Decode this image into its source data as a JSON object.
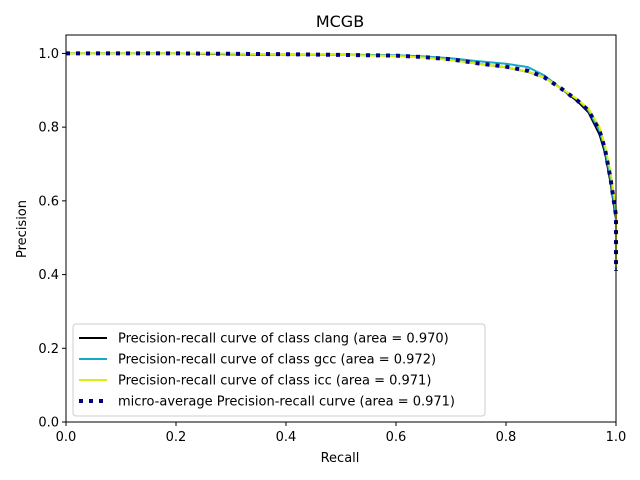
{
  "chart_data": {
    "type": "line",
    "title": "MCGB",
    "xlabel": "Recall",
    "ylabel": "Precision",
    "xlim": [
      0.0,
      1.0
    ],
    "ylim": [
      0.0,
      1.05
    ],
    "x_ticks": [
      "0.0",
      "0.2",
      "0.4",
      "0.6",
      "0.8",
      "1.0"
    ],
    "y_ticks": [
      "0.0",
      "0.2",
      "0.4",
      "0.6",
      "0.8",
      "1.0"
    ],
    "grid": false,
    "legend_position": "lower-left",
    "series": [
      {
        "name": "Precision-recall curve of class clang (area = 0.970)",
        "color": "#000000",
        "style": "solid",
        "x": [
          0.0,
          0.1,
          0.2,
          0.3,
          0.4,
          0.5,
          0.6,
          0.65,
          0.7,
          0.75,
          0.8,
          0.84,
          0.87,
          0.9,
          0.93,
          0.95,
          0.97,
          0.98,
          0.99,
          1.0,
          1.0
        ],
        "y": [
          1.0,
          1.0,
          1.0,
          0.998,
          0.997,
          0.996,
          0.994,
          0.99,
          0.983,
          0.972,
          0.962,
          0.95,
          0.935,
          0.905,
          0.87,
          0.84,
          0.78,
          0.73,
          0.65,
          0.55,
          0.41
        ]
      },
      {
        "name": "Precision-recall curve of class gcc (area = 0.972)",
        "color": "#17a9c9",
        "style": "solid",
        "x": [
          0.0,
          0.1,
          0.2,
          0.3,
          0.4,
          0.5,
          0.6,
          0.65,
          0.7,
          0.75,
          0.8,
          0.84,
          0.87,
          0.9,
          0.93,
          0.95,
          0.97,
          0.98,
          0.99,
          1.0,
          1.0
        ],
        "y": [
          1.0,
          1.0,
          1.0,
          0.999,
          0.998,
          0.997,
          0.995,
          0.992,
          0.987,
          0.979,
          0.972,
          0.963,
          0.94,
          0.905,
          0.875,
          0.845,
          0.79,
          0.74,
          0.66,
          0.56,
          0.41
        ]
      },
      {
        "name": "Precision-recall curve of class icc (area = 0.971)",
        "color": "#d9f00c",
        "style": "solid",
        "x": [
          0.0,
          0.1,
          0.2,
          0.3,
          0.4,
          0.5,
          0.6,
          0.65,
          0.7,
          0.75,
          0.8,
          0.84,
          0.87,
          0.9,
          0.93,
          0.95,
          0.97,
          0.98,
          0.99,
          1.0,
          1.0
        ],
        "y": [
          1.0,
          1.0,
          1.0,
          0.999,
          0.998,
          0.996,
          0.993,
          0.989,
          0.982,
          0.972,
          0.962,
          0.95,
          0.935,
          0.905,
          0.875,
          0.85,
          0.8,
          0.75,
          0.68,
          0.58,
          0.42
        ]
      },
      {
        "name": "micro-average Precision-recall curve (area = 0.971)",
        "color": "#000080",
        "style": "dotted",
        "x": [
          0.0,
          0.1,
          0.2,
          0.3,
          0.4,
          0.5,
          0.6,
          0.65,
          0.7,
          0.75,
          0.8,
          0.84,
          0.87,
          0.9,
          0.93,
          0.95,
          0.97,
          0.98,
          0.99,
          1.0,
          1.0
        ],
        "y": [
          1.0,
          1.0,
          1.0,
          0.999,
          0.998,
          0.996,
          0.994,
          0.99,
          0.984,
          0.973,
          0.964,
          0.953,
          0.935,
          0.905,
          0.872,
          0.845,
          0.79,
          0.74,
          0.66,
          0.56,
          0.41
        ]
      }
    ]
  }
}
